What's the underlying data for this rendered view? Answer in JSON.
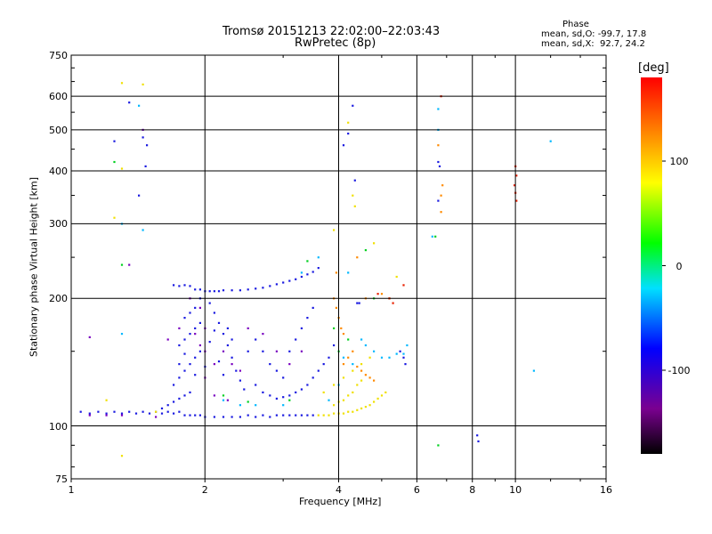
{
  "header": {
    "title_line1": "Tromsø 20151213 22:02:00–22:03:43",
    "title_line2": "RwPretec (8p)",
    "phase_label": "Phase",
    "phase_line_o": "mean, sd,O: -99.7, 17.8",
    "phase_line_x": "mean, sd,X:  92.7, 24.2"
  },
  "chart_data": {
    "type": "scatter",
    "title": "Tromsø 20151213 22:02:00–22:03:43",
    "subtitle": "RwPretec (8p)",
    "xlabel": "Frequency [MHz]",
    "ylabel": "Stationary phase Virtual Height [km]",
    "x_scale": "log",
    "y_scale": "log",
    "xlim": [
      1,
      16
    ],
    "ylim": [
      75,
      750
    ],
    "x_ticks": [
      1,
      2,
      4,
      6,
      8,
      10,
      16
    ],
    "x_tick_labels": [
      "1",
      "2",
      "4",
      "6",
      "8",
      "10",
      "16"
    ],
    "y_ticks": [
      75,
      100,
      200,
      300,
      400,
      500,
      600,
      750
    ],
    "y_tick_labels": [
      "75",
      "100",
      "200",
      "300",
      "400",
      "500",
      "600",
      "750"
    ],
    "grid": true,
    "colorbar": {
      "label": "[deg]",
      "range": [
        -180,
        180
      ],
      "ticks": [
        100,
        0,
        -100
      ],
      "tick_labels": [
        "100",
        "0",
        "-100"
      ],
      "colormap": [
        "#000000",
        "#7a0090",
        "#0000ff",
        "#00e0ff",
        "#00ff00",
        "#ffff00",
        "#ff8000",
        "#ff0000"
      ]
    },
    "series": [
      {
        "color": "#1a1ae0",
        "points": [
          [
            1.05,
            108
          ],
          [
            1.1,
            107
          ],
          [
            1.15,
            108
          ],
          [
            1.2,
            107
          ],
          [
            1.25,
            108
          ],
          [
            1.3,
            107
          ],
          [
            1.35,
            108
          ],
          [
            1.4,
            107
          ],
          [
            1.45,
            108
          ],
          [
            1.5,
            107
          ],
          [
            1.55,
            108
          ],
          [
            1.6,
            107
          ],
          [
            1.65,
            108
          ],
          [
            1.7,
            107
          ],
          [
            1.75,
            108
          ],
          [
            1.8,
            106
          ],
          [
            1.85,
            106
          ],
          [
            1.9,
            106
          ],
          [
            1.95,
            106
          ],
          [
            2.0,
            105
          ],
          [
            2.1,
            105
          ],
          [
            2.2,
            105
          ],
          [
            2.3,
            105
          ],
          [
            2.4,
            105
          ],
          [
            2.5,
            106
          ],
          [
            2.6,
            105
          ],
          [
            2.7,
            106
          ],
          [
            2.8,
            105
          ],
          [
            2.9,
            106
          ],
          [
            3.0,
            106
          ],
          [
            3.1,
            106
          ],
          [
            3.2,
            106
          ],
          [
            3.3,
            106
          ],
          [
            3.4,
            106
          ],
          [
            3.5,
            106
          ],
          [
            1.6,
            110
          ],
          [
            1.65,
            112
          ],
          [
            1.7,
            114
          ],
          [
            1.75,
            116
          ],
          [
            1.8,
            118
          ],
          [
            1.85,
            120
          ],
          [
            1.7,
            125
          ],
          [
            1.75,
            130
          ],
          [
            1.8,
            135
          ],
          [
            1.85,
            140
          ],
          [
            1.9,
            145
          ],
          [
            1.95,
            150
          ],
          [
            1.75,
            155
          ],
          [
            1.8,
            160
          ],
          [
            1.85,
            165
          ],
          [
            1.9,
            170
          ],
          [
            1.95,
            175
          ],
          [
            1.8,
            180
          ],
          [
            1.85,
            185
          ],
          [
            1.9,
            190
          ],
          [
            1.95,
            200
          ],
          [
            2.05,
            195
          ],
          [
            2.1,
            185
          ],
          [
            2.15,
            175
          ],
          [
            2.2,
            165
          ],
          [
            2.25,
            155
          ],
          [
            2.3,
            145
          ],
          [
            2.35,
            135
          ],
          [
            2.4,
            128
          ],
          [
            2.45,
            122
          ],
          [
            1.75,
            140
          ],
          [
            1.8,
            148
          ],
          [
            1.9,
            132
          ],
          [
            2.0,
            138
          ],
          [
            2.05,
            158
          ],
          [
            2.1,
            168
          ],
          [
            2.15,
            142
          ],
          [
            2.2,
            132
          ],
          [
            2.25,
            170
          ],
          [
            2.3,
            160
          ],
          [
            2.5,
            150
          ],
          [
            2.6,
            160
          ],
          [
            2.7,
            150
          ],
          [
            2.8,
            140
          ],
          [
            2.9,
            135
          ],
          [
            3.0,
            130
          ],
          [
            3.1,
            150
          ],
          [
            3.2,
            160
          ],
          [
            3.3,
            170
          ],
          [
            3.4,
            180
          ],
          [
            3.5,
            190
          ],
          [
            2.6,
            125
          ],
          [
            2.7,
            120
          ],
          [
            2.8,
            118
          ],
          [
            2.9,
            116
          ],
          [
            3.0,
            117
          ],
          [
            3.1,
            118
          ],
          [
            3.2,
            120
          ],
          [
            3.3,
            122
          ],
          [
            3.4,
            125
          ],
          [
            3.5,
            130
          ],
          [
            3.6,
            135
          ],
          [
            3.7,
            140
          ],
          [
            3.8,
            145
          ],
          [
            3.9,
            155
          ],
          [
            1.9,
            210
          ],
          [
            1.95,
            210
          ],
          [
            2.0,
            208
          ],
          [
            2.05,
            208
          ],
          [
            2.1,
            208
          ],
          [
            2.15,
            208
          ],
          [
            2.2,
            209
          ],
          [
            2.3,
            209
          ],
          [
            2.4,
            209
          ],
          [
            2.5,
            210
          ],
          [
            2.6,
            211
          ],
          [
            2.7,
            212
          ],
          [
            2.8,
            214
          ],
          [
            2.9,
            216
          ],
          [
            3.0,
            218
          ],
          [
            3.1,
            220
          ],
          [
            3.2,
            222
          ],
          [
            3.3,
            225
          ],
          [
            3.4,
            228
          ],
          [
            3.5,
            231
          ],
          [
            3.6,
            236
          ],
          [
            1.7,
            215
          ],
          [
            1.75,
            214
          ],
          [
            1.8,
            215
          ],
          [
            1.85,
            214
          ],
          [
            1.25,
            470
          ],
          [
            1.35,
            580
          ],
          [
            1.45,
            480
          ],
          [
            1.48,
            460
          ],
          [
            1.47,
            410
          ],
          [
            1.42,
            350
          ],
          [
            4.3,
            570
          ],
          [
            4.2,
            490
          ],
          [
            4.1,
            460
          ],
          [
            4.35,
            380
          ],
          [
            6.7,
            420
          ],
          [
            6.75,
            410
          ],
          [
            6.7,
            340
          ],
          [
            4.4,
            195
          ],
          [
            4.45,
            195
          ],
          [
            5.5,
            150
          ],
          [
            5.6,
            145
          ],
          [
            5.65,
            140
          ],
          [
            8.2,
            95
          ],
          [
            8.25,
            92
          ]
        ]
      },
      {
        "color": "#7a00c0",
        "points": [
          [
            1.1,
            106
          ],
          [
            1.2,
            106
          ],
          [
            1.3,
            106
          ],
          [
            1.55,
            105
          ],
          [
            1.65,
            160
          ],
          [
            1.75,
            170
          ],
          [
            1.85,
            200
          ],
          [
            1.95,
            190
          ],
          [
            2.0,
            170
          ],
          [
            2.0,
            150
          ],
          [
            2.0,
            130
          ],
          [
            2.1,
            140
          ],
          [
            2.2,
            150
          ],
          [
            2.3,
            140
          ],
          [
            2.4,
            135
          ],
          [
            2.5,
            170
          ],
          [
            2.7,
            165
          ],
          [
            2.9,
            150
          ],
          [
            3.1,
            140
          ],
          [
            3.3,
            150
          ],
          [
            1.9,
            165
          ],
          [
            1.95,
            155
          ],
          [
            2.1,
            118
          ],
          [
            2.25,
            115
          ],
          [
            1.45,
            500
          ],
          [
            1.35,
            240
          ],
          [
            1.1,
            162
          ]
        ]
      },
      {
        "color": "#00b8ff",
        "points": [
          [
            1.42,
            570
          ],
          [
            1.45,
            290
          ],
          [
            1.3,
            300
          ],
          [
            2.2,
            115
          ],
          [
            2.4,
            112
          ],
          [
            2.6,
            112
          ],
          [
            3.0,
            112
          ],
          [
            3.3,
            230
          ],
          [
            3.6,
            250
          ],
          [
            4.2,
            230
          ],
          [
            4.5,
            160
          ],
          [
            4.6,
            155
          ],
          [
            4.8,
            150
          ],
          [
            5.0,
            145
          ],
          [
            5.2,
            145
          ],
          [
            5.4,
            148
          ],
          [
            5.6,
            148
          ],
          [
            5.7,
            155
          ],
          [
            4.3,
            140
          ],
          [
            4.1,
            145
          ],
          [
            4.0,
            125
          ],
          [
            3.8,
            115
          ],
          [
            6.7,
            500
          ],
          [
            6.7,
            560
          ],
          [
            12.0,
            470
          ],
          [
            11.0,
            135
          ],
          [
            6.5,
            280
          ],
          [
            1.3,
            165
          ]
        ]
      },
      {
        "color": "#00d020",
        "points": [
          [
            1.25,
            420
          ],
          [
            2.2,
            118
          ],
          [
            2.5,
            114
          ],
          [
            3.1,
            115
          ],
          [
            3.4,
            245
          ],
          [
            3.9,
            170
          ],
          [
            4.0,
            150
          ],
          [
            4.2,
            160
          ],
          [
            6.7,
            90
          ],
          [
            4.6,
            260
          ],
          [
            1.3,
            240
          ],
          [
            6.6,
            280
          ],
          [
            4.8,
            200
          ]
        ]
      },
      {
        "color": "#f0e000",
        "points": [
          [
            3.6,
            106
          ],
          [
            3.7,
            106
          ],
          [
            3.8,
            106
          ],
          [
            3.9,
            107
          ],
          [
            4.0,
            107
          ],
          [
            4.1,
            107
          ],
          [
            4.2,
            108
          ],
          [
            4.3,
            108
          ],
          [
            4.4,
            109
          ],
          [
            4.5,
            110
          ],
          [
            4.6,
            111
          ],
          [
            4.7,
            112
          ],
          [
            4.8,
            114
          ],
          [
            4.9,
            116
          ],
          [
            5.0,
            118
          ],
          [
            5.1,
            120
          ],
          [
            3.9,
            112
          ],
          [
            4.0,
            114
          ],
          [
            4.1,
            115
          ],
          [
            4.2,
            118
          ],
          [
            4.3,
            120
          ],
          [
            4.4,
            125
          ],
          [
            4.5,
            128
          ],
          [
            3.7,
            120
          ],
          [
            3.9,
            125
          ],
          [
            4.1,
            130
          ],
          [
            4.3,
            135
          ],
          [
            4.5,
            140
          ],
          [
            4.7,
            145
          ],
          [
            1.3,
            645
          ],
          [
            1.45,
            640
          ],
          [
            1.3,
            405
          ],
          [
            1.25,
            310
          ],
          [
            1.2,
            115
          ],
          [
            1.3,
            85
          ],
          [
            4.2,
            520
          ],
          [
            4.35,
            330
          ],
          [
            4.3,
            350
          ],
          [
            3.9,
            290
          ],
          [
            4.8,
            270
          ],
          [
            5.4,
            225
          ],
          [
            1.55,
            108
          ]
        ]
      },
      {
        "color": "#ff8a00",
        "points": [
          [
            4.1,
            140
          ],
          [
            4.2,
            145
          ],
          [
            4.3,
            150
          ],
          [
            4.4,
            138
          ],
          [
            4.5,
            135
          ],
          [
            4.6,
            132
          ],
          [
            4.7,
            130
          ],
          [
            4.8,
            128
          ],
          [
            3.9,
            200
          ],
          [
            3.95,
            190
          ],
          [
            4.0,
            180
          ],
          [
            4.05,
            170
          ],
          [
            4.1,
            165
          ],
          [
            6.8,
            350
          ],
          [
            6.85,
            370
          ],
          [
            6.8,
            320
          ],
          [
            4.4,
            250
          ],
          [
            4.6,
            200
          ],
          [
            5.0,
            205
          ],
          [
            5.2,
            200
          ],
          [
            3.95,
            230
          ],
          [
            6.7,
            460
          ]
        ]
      },
      {
        "color": "#e82000",
        "points": [
          [
            10.0,
            410
          ],
          [
            10.05,
            390
          ],
          [
            9.95,
            370
          ],
          [
            10.0,
            355
          ],
          [
            10.05,
            340
          ],
          [
            6.8,
            600
          ],
          [
            5.2,
            200
          ],
          [
            4.9,
            205
          ],
          [
            5.6,
            215
          ],
          [
            5.3,
            195
          ]
        ]
      }
    ]
  }
}
